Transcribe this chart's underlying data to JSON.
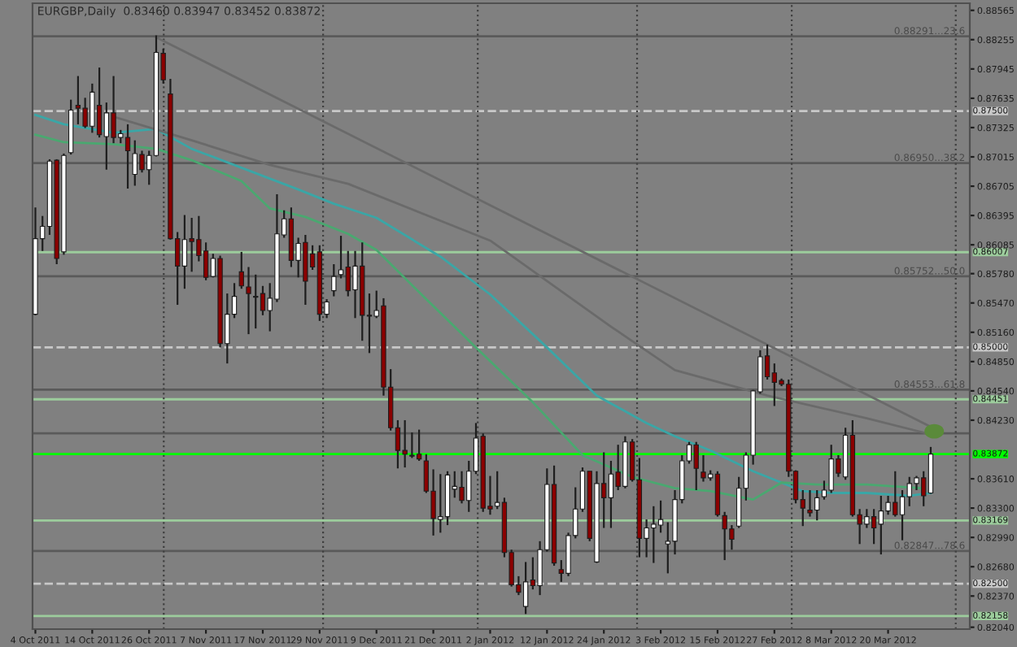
{
  "chart_data": {
    "type": "candlestick",
    "title": "EURGBP,Daily  0.83460 0.83947 0.83452 0.83872",
    "categories": [
      "4 Oct 2011",
      null,
      null,
      null,
      null,
      null,
      null,
      null,
      "14 Oct 2011",
      null,
      null,
      null,
      null,
      null,
      null,
      null,
      "26 Oct 2011",
      null,
      null,
      null,
      null,
      null,
      null,
      null,
      "7 Nov 2011",
      null,
      null,
      null,
      null,
      null,
      null,
      null,
      "17 Nov 2011",
      null,
      null,
      null,
      null,
      null,
      null,
      null,
      "29 Nov 2011",
      null,
      null,
      null,
      null,
      null,
      null,
      null,
      "9 Dec 2011",
      null,
      null,
      null,
      null,
      null,
      null,
      null,
      "21 Dec 2011",
      null,
      null,
      null,
      null,
      null,
      null,
      null,
      "2 Jan 2012",
      null,
      null,
      null,
      null,
      null,
      null,
      null,
      "12 Jan 2012",
      null,
      null,
      null,
      null,
      null,
      null,
      null,
      "24 Jan 2012",
      null,
      null,
      null,
      null,
      null,
      null,
      null,
      "3 Feb 2012",
      null,
      null,
      null,
      null,
      null,
      null,
      null,
      "15 Feb 2012",
      null,
      null,
      null,
      null,
      null,
      null,
      null,
      "27 Feb 2012",
      null,
      null,
      null,
      null,
      null,
      null,
      null,
      "8 Mar 2012",
      null,
      null,
      null,
      null,
      null,
      null,
      null,
      "20 Mar 2012",
      null,
      null,
      null,
      null,
      null,
      null
    ],
    "annotations": [
      {
        "text": "0.88291...23.6",
        "y": 0.88291
      },
      {
        "text": "0.86950...38.2",
        "y": 0.8695
      },
      {
        "text": "0.85752...50.0",
        "y": 0.85752
      },
      {
        "text": "0.84553...61.8",
        "y": 0.84553
      },
      {
        "text": "0.82847...78.6",
        "y": 0.82847
      }
    ],
    "ylim": [
      0.8202,
      0.8864
    ],
    "yticks": [
      0.88565,
      0.88255,
      0.87945,
      0.87635,
      0.87325,
      0.87015,
      0.86705,
      0.86395,
      0.86085,
      {
        "value": 0.8578,
        "label": "0.85780"
      },
      {
        "value": 0.8547,
        "label": "0.85470"
      },
      {
        "value": 0.8516,
        "label": "0.85160"
      },
      {
        "value": 0.8485,
        "label": "0.84850"
      },
      {
        "value": 0.8454,
        "label": "0.84540"
      },
      {
        "value": 0.8423,
        "label": "0.84230"
      },
      {
        "value": 0.8361,
        "label": "0.83610"
      },
      {
        "value": 0.833,
        "label": "0.83300"
      },
      {
        "value": 0.8299,
        "label": "0.82990"
      },
      {
        "value": 0.8268,
        "label": "0.82680"
      },
      {
        "value": 0.8237,
        "label": "0.82370"
      },
      {
        "value": 0.8204,
        "label": "0.82040"
      }
    ],
    "ohlc": [
      [
        0.8535,
        0.8648,
        0.8534,
        0.8615
      ],
      [
        0.8615,
        0.8639,
        0.8602,
        0.8628
      ],
      [
        0.8628,
        0.8699,
        0.8619,
        0.8697
      ],
      [
        0.8698,
        0.8699,
        0.8588,
        0.8594
      ],
      [
        0.8601,
        0.8705,
        0.8598,
        0.8703
      ],
      [
        0.8706,
        0.8762,
        0.8704,
        0.8751
      ],
      [
        0.8756,
        0.8787,
        0.8736,
        0.8753
      ],
      [
        0.8753,
        0.8764,
        0.8732,
        0.8734
      ],
      [
        0.8734,
        0.8779,
        0.8727,
        0.877
      ],
      [
        0.8756,
        0.8796,
        0.8722,
        0.8725
      ],
      [
        0.8723,
        0.8759,
        0.8688,
        0.8748
      ],
      [
        0.8748,
        0.8787,
        0.8716,
        0.8722
      ],
      [
        0.8722,
        0.873,
        0.8716,
        0.8726
      ],
      [
        0.8722,
        0.8736,
        0.8668,
        0.8708
      ],
      [
        0.8683,
        0.8719,
        0.8671,
        0.8705
      ],
      [
        0.8704,
        0.8708,
        0.8685,
        0.8688
      ],
      [
        0.8688,
        0.8708,
        0.8672,
        0.8703
      ],
      [
        0.8703,
        0.883,
        0.8702,
        0.8812
      ],
      [
        0.8811,
        0.8816,
        0.8779,
        0.8783
      ],
      [
        0.8768,
        0.8784,
        0.8614,
        0.8615
      ],
      [
        0.8615,
        0.8622,
        0.8545,
        0.8586
      ],
      [
        0.8586,
        0.864,
        0.8562,
        0.8614
      ],
      [
        0.8615,
        0.8637,
        0.858,
        0.8612
      ],
      [
        0.8614,
        0.8639,
        0.8591,
        0.8597
      ],
      [
        0.8602,
        0.8611,
        0.8571,
        0.8574
      ],
      [
        0.8575,
        0.8599,
        0.8574,
        0.8594
      ],
      [
        0.8594,
        0.8597,
        0.85,
        0.8504
      ],
      [
        0.8504,
        0.8557,
        0.8483,
        0.8535
      ],
      [
        0.8535,
        0.8568,
        0.8531,
        0.8554
      ],
      [
        0.858,
        0.8601,
        0.8562,
        0.8565
      ],
      [
        0.8564,
        0.8585,
        0.8514,
        0.8557
      ],
      [
        0.8554,
        0.8577,
        0.852,
        0.8553
      ],
      [
        0.8557,
        0.8565,
        0.8534,
        0.8539
      ],
      [
        0.8539,
        0.8568,
        0.8517,
        0.8552
      ],
      [
        0.8551,
        0.8662,
        0.8548,
        0.862
      ],
      [
        0.8619,
        0.8645,
        0.8616,
        0.8636
      ],
      [
        0.8636,
        0.8648,
        0.8585,
        0.8592
      ],
      [
        0.8592,
        0.8616,
        0.8574,
        0.861
      ],
      [
        0.8611,
        0.8619,
        0.8545,
        0.857
      ],
      [
        0.8599,
        0.8608,
        0.8582,
        0.8585
      ],
      [
        0.8601,
        0.8608,
        0.8528,
        0.8535
      ],
      [
        0.8535,
        0.8551,
        0.8531,
        0.8548
      ],
      [
        0.856,
        0.8588,
        0.8554,
        0.8575
      ],
      [
        0.8577,
        0.8618,
        0.8573,
        0.8582
      ],
      [
        0.8585,
        0.8602,
        0.8554,
        0.856
      ],
      [
        0.8561,
        0.8602,
        0.8531,
        0.8586
      ],
      [
        0.8586,
        0.8611,
        0.8507,
        0.8534
      ],
      [
        0.8534,
        0.8557,
        0.8494,
        0.8533
      ],
      [
        0.8533,
        0.856,
        0.8531,
        0.8539
      ],
      [
        0.8544,
        0.8552,
        0.8449,
        0.8458
      ],
      [
        0.8458,
        0.8477,
        0.8412,
        0.8415
      ],
      [
        0.8415,
        0.8423,
        0.8372,
        0.8391
      ],
      [
        0.8391,
        0.8423,
        0.8373,
        0.8387
      ],
      [
        0.8386,
        0.841,
        0.8383,
        0.8385
      ],
      [
        0.8387,
        0.8413,
        0.838,
        0.8382
      ],
      [
        0.838,
        0.8387,
        0.8346,
        0.8348
      ],
      [
        0.8348,
        0.8371,
        0.8301,
        0.8319
      ],
      [
        0.8318,
        0.8366,
        0.8304,
        0.8321
      ],
      [
        0.8321,
        0.8369,
        0.8312,
        0.8365
      ],
      [
        0.835,
        0.8369,
        0.8341,
        0.8353
      ],
      [
        0.8352,
        0.8369,
        0.8335,
        0.8338
      ],
      [
        0.8338,
        0.838,
        0.8326,
        0.8369
      ],
      [
        0.8369,
        0.842,
        0.8366,
        0.8404
      ],
      [
        0.8406,
        0.8409,
        0.8326,
        0.833
      ],
      [
        0.8332,
        0.8364,
        0.8323,
        0.8329
      ],
      [
        0.8332,
        0.8369,
        0.8329,
        0.8336
      ],
      [
        0.8336,
        0.8341,
        0.8278,
        0.8283
      ],
      [
        0.8283,
        0.8286,
        0.8247,
        0.8249
      ],
      [
        0.8249,
        0.8258,
        0.8238,
        0.8241
      ],
      [
        0.8226,
        0.8273,
        0.8218,
        0.8252
      ],
      [
        0.8254,
        0.8278,
        0.8244,
        0.8248
      ],
      [
        0.8248,
        0.8295,
        0.8238,
        0.8286
      ],
      [
        0.8286,
        0.8372,
        0.8284,
        0.8355
      ],
      [
        0.8355,
        0.8375,
        0.8269,
        0.8272
      ],
      [
        0.8265,
        0.8275,
        0.8252,
        0.8261
      ],
      [
        0.8261,
        0.8304,
        0.8258,
        0.8301
      ],
      [
        0.8301,
        0.8352,
        0.8298,
        0.8329
      ],
      [
        0.8329,
        0.8373,
        0.8326,
        0.8369
      ],
      [
        0.8369,
        0.8369,
        0.8295,
        0.8298
      ],
      [
        0.8273,
        0.8369,
        0.8272,
        0.8356
      ],
      [
        0.8356,
        0.8389,
        0.8309,
        0.8341
      ],
      [
        0.8341,
        0.838,
        0.8309,
        0.8366
      ],
      [
        0.8368,
        0.8397,
        0.8349,
        0.8353
      ],
      [
        0.8353,
        0.8406,
        0.8351,
        0.84
      ],
      [
        0.84,
        0.8403,
        0.8358,
        0.836
      ],
      [
        0.836,
        0.8383,
        0.8278,
        0.8298
      ],
      [
        0.8298,
        0.8318,
        0.8278,
        0.8309
      ],
      [
        0.8309,
        0.8332,
        0.8272,
        0.8313
      ],
      [
        0.8312,
        0.8338,
        0.8304,
        0.8318
      ],
      [
        0.8292,
        0.8315,
        0.8261,
        0.8295
      ],
      [
        0.8295,
        0.8349,
        0.8281,
        0.8339
      ],
      [
        0.8339,
        0.8386,
        0.8335,
        0.838
      ],
      [
        0.838,
        0.84,
        0.8377,
        0.8397
      ],
      [
        0.8397,
        0.84,
        0.8349,
        0.8372
      ],
      [
        0.8368,
        0.8386,
        0.8358,
        0.8362
      ],
      [
        0.8362,
        0.837,
        0.8359,
        0.8366
      ],
      [
        0.8366,
        0.8369,
        0.8321,
        0.8323
      ],
      [
        0.8322,
        0.8326,
        0.8275,
        0.8308
      ],
      [
        0.8308,
        0.8312,
        0.8286,
        0.8297
      ],
      [
        0.8311,
        0.8363,
        0.8309,
        0.8351
      ],
      [
        0.8351,
        0.8389,
        0.8338,
        0.8386
      ],
      [
        0.8386,
        0.8455,
        0.8376,
        0.8454
      ],
      [
        0.8453,
        0.8497,
        0.8451,
        0.849
      ],
      [
        0.8491,
        0.8503,
        0.8466,
        0.8469
      ],
      [
        0.8473,
        0.8483,
        0.8438,
        0.8463
      ],
      [
        0.8465,
        0.8467,
        0.8459,
        0.8461
      ],
      [
        0.8461,
        0.8466,
        0.8363,
        0.8369
      ],
      [
        0.8369,
        0.837,
        0.8335,
        0.8339
      ],
      [
        0.8339,
        0.8349,
        0.8311,
        0.833
      ],
      [
        0.8328,
        0.8349,
        0.8321,
        0.8325
      ],
      [
        0.8328,
        0.8349,
        0.8317,
        0.8341
      ],
      [
        0.8342,
        0.8359,
        0.8339,
        0.8349
      ],
      [
        0.8349,
        0.8397,
        0.8346,
        0.8382
      ],
      [
        0.8382,
        0.8386,
        0.8363,
        0.8367
      ],
      [
        0.8363,
        0.8415,
        0.836,
        0.8407
      ],
      [
        0.8407,
        0.8423,
        0.8321,
        0.8323
      ],
      [
        0.8323,
        0.8329,
        0.8292,
        0.8313
      ],
      [
        0.8313,
        0.8329,
        0.8309,
        0.8321
      ],
      [
        0.8321,
        0.8329,
        0.8292,
        0.8309
      ],
      [
        0.8313,
        0.8343,
        0.8281,
        0.8327
      ],
      [
        0.8327,
        0.8343,
        0.8323,
        0.8336
      ],
      [
        0.8336,
        0.8369,
        0.8321,
        0.8323
      ],
      [
        0.8323,
        0.8349,
        0.8296,
        0.8342
      ],
      [
        0.8342,
        0.8363,
        0.8332,
        0.8356
      ],
      [
        0.8356,
        0.8364,
        0.8349,
        0.8362
      ],
      [
        0.8362,
        0.8369,
        0.8332,
        0.8343
      ],
      [
        0.8346,
        0.83947,
        0.83452,
        0.83872
      ]
    ],
    "colors": [
      "#ffffff",
      "#ffffff",
      "#ffffff",
      "#8b0000",
      "#ffffff",
      "#ffffff",
      "#8b0000",
      "#8b0000",
      "#ffffff",
      "#8b0000",
      "#ffffff",
      "#8b0000",
      "#ffffff",
      "#8b0000",
      "#ffffff",
      "#8b0000",
      "#ffffff",
      "#ffffff",
      "#8b0000",
      "#8b0000",
      "#8b0000",
      "#ffffff",
      "#8b0000",
      "#8b0000",
      "#8b0000",
      "#ffffff",
      "#8b0000",
      "#ffffff",
      "#ffffff",
      "#8b0000",
      "#8b0000",
      "#8b0000",
      "#8b0000",
      "#ffffff",
      "#ffffff",
      "#ffffff",
      "#8b0000",
      "#ffffff",
      "#8b0000",
      "#8b0000",
      "#8b0000",
      "#ffffff",
      "#ffffff",
      "#ffffff",
      "#8b0000",
      "#ffffff",
      "#8b0000",
      "#8b0000",
      "#ffffff",
      "#8b0000",
      "#8b0000",
      "#8b0000",
      "#8b0000",
      "#8b0000",
      "#8b0000",
      "#8b0000",
      "#8b0000",
      "#ffffff",
      "#ffffff",
      "#ffffff",
      "#8b0000",
      "#ffffff",
      "#ffffff",
      "#8b0000",
      "#8b0000",
      "#ffffff",
      "#8b0000",
      "#8b0000",
      "#8b0000",
      "#ffffff",
      "#8b0000",
      "#ffffff",
      "#ffffff",
      "#8b0000",
      "#8b0000",
      "#ffffff",
      "#ffffff",
      "#ffffff",
      "#8b0000",
      "#ffffff",
      "#8b0000",
      "#ffffff",
      "#8b0000",
      "#ffffff",
      "#8b0000",
      "#8b0000",
      "#ffffff",
      "#ffffff",
      "#ffffff",
      "#ffffff",
      "#ffffff",
      "#ffffff",
      "#ffffff",
      "#8b0000",
      "#8b0000",
      "#ffffff",
      "#8b0000",
      "#8b0000",
      "#8b0000",
      "#ffffff",
      "#ffffff",
      "#ffffff",
      "#ffffff",
      "#8b0000",
      "#8b0000",
      "#8b0000",
      "#8b0000",
      "#8b0000",
      "#8b0000",
      "#8b0000",
      "#ffffff",
      "#ffffff",
      "#ffffff",
      "#8b0000",
      "#ffffff",
      "#8b0000",
      "#8b0000",
      "#ffffff",
      "#8b0000",
      "#ffffff",
      "#ffffff",
      "#8b0000",
      "#ffffff",
      "#ffffff",
      "#ffffff",
      "#8b0000",
      "#ffffff"
    ],
    "series": [
      {
        "type": "line",
        "color": "#3aa6a6",
        "values": [
          0.8746,
          null,
          null,
          null,
          0.8736,
          null,
          null,
          null,
          null,
          null,
          null,
          0.8727,
          null,
          null,
          null,
          null,
          null,
          0.8731,
          null,
          null,
          null,
          null,
          0.871,
          null,
          null,
          null,
          null,
          null,
          null,
          0.869,
          null,
          null,
          null,
          null,
          null,
          null,
          null,
          0.8667,
          null,
          null,
          null,
          null,
          0.8652,
          null,
          null,
          null,
          null,
          null,
          0.8637,
          null,
          null,
          null,
          null,
          null,
          null,
          null,
          null,
          0.8596,
          null,
          null,
          null,
          null,
          null,
          null,
          0.8556,
          null,
          null,
          null,
          null,
          null,
          null,
          null,
          0.85,
          null,
          null,
          null,
          null,
          null,
          null,
          0.8449,
          null,
          null,
          null,
          null,
          null,
          null,
          0.842,
          null,
          null,
          null,
          0.8406,
          null,
          null,
          null,
          null,
          0.8391,
          null,
          null,
          null,
          null,
          null,
          0.8369,
          null,
          null,
          null,
          null,
          null,
          null,
          0.8348,
          null,
          null,
          null,
          0.8346,
          null,
          null,
          null,
          null,
          0.8346,
          null,
          null,
          null,
          null,
          null,
          0.8343,
          null,
          null,
          0.8346
        ]
      },
      {
        "type": "line",
        "color": "#4aa870",
        "values": [
          0.8725,
          null,
          null,
          null,
          0.8717,
          null,
          null,
          null,
          null,
          null,
          null,
          0.8715,
          null,
          null,
          null,
          null,
          null,
          0.871,
          null,
          null,
          null,
          null,
          0.8698,
          null,
          null,
          null,
          null,
          null,
          null,
          0.8676,
          null,
          null,
          null,
          0.8647,
          null,
          null,
          null,
          null,
          0.8638,
          null,
          null,
          null,
          null,
          null,
          0.862,
          null,
          null,
          null,
          0.8603,
          null,
          null,
          null,
          null,
          null,
          null,
          0.8551,
          null,
          null,
          null,
          null,
          null,
          null,
          0.85,
          null,
          null,
          null,
          null,
          null,
          null,
          null,
          0.8442,
          null,
          null,
          null,
          null,
          null,
          null,
          0.8386,
          null,
          null,
          null,
          null,
          null,
          null,
          0.8363,
          null,
          null,
          null,
          null,
          null,
          0.8351,
          null,
          null,
          null,
          null,
          0.8348,
          null,
          null,
          null,
          null,
          null,
          0.8339,
          null,
          null,
          null,
          0.8357,
          null,
          null,
          null,
          null,
          0.8355,
          null,
          null,
          null,
          null,
          null,
          null,
          0.8355,
          null,
          null,
          null,
          null,
          null,
          null,
          null,
          0.8351,
          null
        ]
      },
      {
        "type": "line",
        "color": "#6a6a6a",
        "values": [
          null,
          null,
          null,
          null,
          null,
          null,
          null,
          null,
          null,
          null,
          null,
          null,
          null,
          null,
          null,
          null,
          null,
          0.8828,
          null,
          null,
          null,
          null,
          null,
          null,
          null,
          null,
          null,
          null,
          null,
          null,
          null,
          null,
          null,
          null,
          null,
          null,
          null,
          null,
          null,
          null,
          null,
          null,
          null,
          null,
          null,
          null,
          null,
          null,
          null,
          null,
          null,
          null,
          null,
          null,
          null,
          null,
          null,
          null,
          null,
          null,
          null,
          null,
          null,
          null,
          null,
          null,
          null,
          null,
          null,
          null,
          null,
          null,
          null,
          null,
          null,
          null,
          null,
          null,
          null,
          null,
          null,
          null,
          null,
          null,
          null,
          null,
          null,
          null,
          null,
          null,
          null,
          null,
          null,
          null,
          null,
          null,
          null,
          null,
          null,
          null,
          null,
          null,
          null,
          null,
          null,
          null,
          null,
          null,
          null,
          null,
          null,
          null,
          null,
          null,
          null,
          null,
          null,
          null,
          null,
          null,
          null,
          null,
          null,
          null,
          null,
          null,
          0.8416
        ]
      },
      {
        "type": "line",
        "color": "#6a6a6a",
        "values": [
          null,
          null,
          null,
          null,
          null,
          null,
          null,
          null,
          null,
          null,
          null,
          0.8744,
          null,
          null,
          null,
          null,
          null,
          null,
          null,
          null,
          null,
          null,
          0.8719,
          null,
          null,
          null,
          null,
          null,
          null,
          null,
          null,
          null,
          null,
          0.8693,
          null,
          null,
          null,
          null,
          null,
          null,
          null,
          null,
          null,
          null,
          0.8673,
          null,
          null,
          null,
          null,
          null,
          null,
          null,
          null,
          null,
          null,
          null,
          null,
          null,
          null,
          null,
          null,
          null,
          null,
          null,
          0.8613,
          null,
          null,
          null,
          null,
          null,
          null,
          null,
          null,
          null,
          null,
          null,
          null,
          null,
          null,
          null,
          null,
          0.8522,
          null,
          null,
          null,
          null,
          null,
          null,
          null,
          null,
          0.8476,
          null,
          null,
          null,
          null,
          null,
          null,
          null,
          null,
          null,
          null,
          null,
          null,
          0.8449,
          null,
          null,
          null,
          null,
          null,
          null,
          null,
          null,
          null,
          null,
          null,
          null,
          null,
          0.8425,
          null,
          null,
          null,
          null,
          null,
          null,
          null,
          null,
          0.8408
        ]
      }
    ],
    "ref_lines": [
      {
        "axis": "y",
        "value": 0.88291,
        "color": "#5a5a5a"
      },
      {
        "axis": "y",
        "value": 0.8695,
        "color": "#5a5a5a"
      },
      {
        "axis": "y",
        "value": 0.85752,
        "color": "#5a5a5a"
      },
      {
        "axis": "y",
        "value": 0.84553,
        "color": "#5a5a5a"
      },
      {
        "axis": "y",
        "value": 0.82847,
        "color": "#5a5a5a"
      },
      {
        "axis": "y",
        "value": 0.8409,
        "color": "#5a5a5a"
      },
      {
        "axis": "y",
        "value": 0.875,
        "label": "0.87500",
        "color": "#c8c8c8",
        "line_style": "dashed"
      },
      {
        "axis": "y",
        "value": 0.85,
        "label": "0.85000",
        "color": "#c8c8c8",
        "line_style": "dashed"
      },
      {
        "axis": "y",
        "value": 0.825,
        "label": "0.82500",
        "color": "#c8c8c8",
        "line_style": "dashed"
      },
      {
        "axis": "y",
        "value": 0.86007,
        "label": "0.86007",
        "color": "#9ccc9c"
      },
      {
        "axis": "y",
        "value": 0.84451,
        "label": "0.84451",
        "color": "#9ccc9c"
      },
      {
        "axis": "y",
        "value": 0.83169,
        "label": "0.83169",
        "color": "#9ccc9c"
      },
      {
        "axis": "y",
        "value": 0.82158,
        "label": "0.82158",
        "color": "#9ccc9c"
      },
      {
        "axis": "y",
        "value": 0.83872,
        "label": "0.83872",
        "color": "#00ff00"
      }
    ]
  }
}
